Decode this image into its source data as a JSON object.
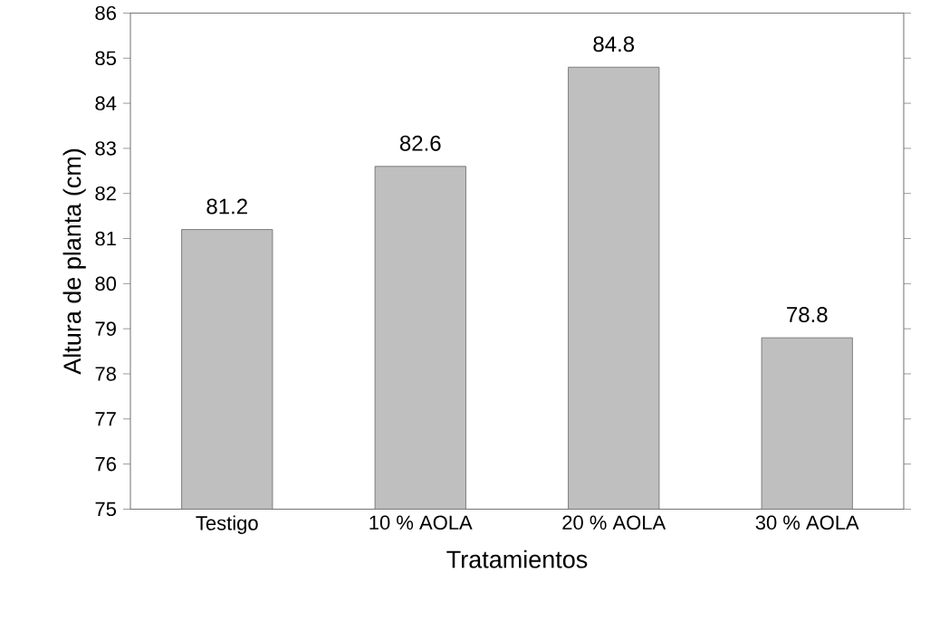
{
  "chart_data": {
    "type": "bar",
    "xlabel": "Tratamientos",
    "ylabel": "Altura de planta (cm)",
    "categories": [
      "Testigo",
      "10 % AOLA",
      "20 % AOLA",
      "30 % AOLA"
    ],
    "values": [
      81.2,
      82.6,
      84.8,
      78.8
    ],
    "color": "#bfbfbf",
    "ylim": [
      75,
      86
    ],
    "yticks": [
      75,
      76,
      77,
      78,
      79,
      80,
      81,
      82,
      83,
      84,
      85,
      86
    ],
    "data_labels": true
  }
}
